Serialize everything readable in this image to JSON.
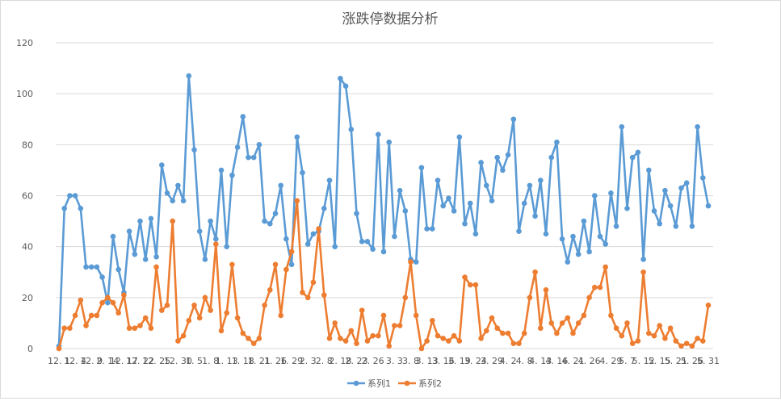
{
  "chart_data": {
    "type": "line",
    "title": "涨跌停数据分析",
    "xlabel": "",
    "ylabel": "",
    "ylim": [
      0,
      120
    ],
    "yticks": [
      0,
      20,
      40,
      60,
      80,
      100,
      120
    ],
    "grid": true,
    "legend": "bottom",
    "x_tick_labels": [
      "12. 1",
      "12. 4",
      "12. 9",
      "2. 14",
      "12. 17",
      "12. 22",
      "12. 25",
      "12. 30",
      "1. 5",
      "1. 8",
      "1. 13",
      "1. 18",
      "1. 21",
      "1. 26",
      "1. 29",
      "2. 3",
      "2. 8",
      "2. 18",
      "2. 23",
      "2. 26",
      "3. 3",
      "3. 8",
      "3. 13",
      "3. 16",
      "3. 19",
      "3. 24",
      "3. 29",
      "4. 2",
      "4. 8",
      "4. 13",
      "4. 16",
      "4. 21",
      "4. 26",
      "4. 29",
      "5. 7",
      "5. 12",
      "5. 15",
      "5. 21",
      "5. 26",
      "5. 31"
    ],
    "series": [
      {
        "name": "系列1",
        "color": "#5b9bd5",
        "values": [
          1,
          55,
          60,
          60,
          55,
          32,
          32,
          32,
          28,
          18,
          44,
          31,
          22,
          46,
          37,
          50,
          35,
          51,
          36,
          72,
          61,
          58,
          64,
          58,
          107,
          78,
          46,
          35,
          50,
          43,
          70,
          40,
          68,
          79,
          91,
          75,
          75,
          80,
          50,
          49,
          53,
          64,
          43,
          33,
          83,
          69,
          41,
          45,
          46,
          55,
          66,
          40,
          106,
          103,
          86,
          53,
          42,
          42,
          39,
          84,
          38,
          81,
          44,
          62,
          54,
          35,
          34,
          71,
          47,
          47,
          66,
          56,
          59,
          54,
          83,
          49,
          57,
          45,
          73,
          64,
          58,
          75,
          70,
          76,
          90,
          46,
          57,
          64,
          52,
          66,
          45,
          75,
          81,
          43,
          34,
          44,
          37,
          50,
          38,
          60,
          44,
          41,
          61,
          48,
          87,
          55,
          75,
          77,
          35,
          70,
          54,
          49,
          62,
          56,
          48,
          63,
          65,
          48,
          87,
          67,
          56
        ]
      },
      {
        "name": "系列2",
        "color": "#ed7d31",
        "values": [
          0,
          8,
          8,
          13,
          19,
          9,
          13,
          13,
          18,
          20,
          18,
          14,
          21,
          8,
          8,
          9,
          12,
          8,
          32,
          15,
          17,
          50,
          3,
          5,
          11,
          17,
          12,
          20,
          15,
          41,
          7,
          14,
          33,
          12,
          6,
          4,
          2,
          4,
          17,
          23,
          33,
          13,
          31,
          38,
          58,
          22,
          20,
          26,
          47,
          21,
          4,
          10,
          4,
          3,
          7,
          2,
          15,
          3,
          5,
          5,
          13,
          1,
          9,
          9,
          20,
          34,
          13,
          0,
          3,
          11,
          5,
          4,
          3,
          5,
          3,
          28,
          25,
          25,
          4,
          7,
          12,
          8,
          6,
          6,
          2,
          2,
          6,
          20,
          30,
          8,
          23,
          10,
          6,
          10,
          12,
          6,
          10,
          13,
          20,
          24,
          24,
          32,
          13,
          8,
          5,
          10,
          2,
          3,
          30,
          6,
          5,
          9,
          4,
          8,
          3,
          1,
          2,
          1,
          4,
          3,
          17
        ]
      }
    ]
  }
}
